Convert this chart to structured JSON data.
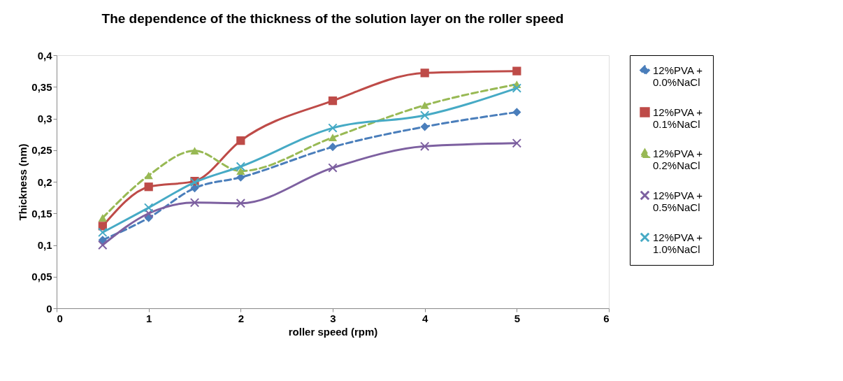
{
  "chart_data": {
    "type": "line",
    "title": "The dependence of the thickness of the  solution layer on the roller speed",
    "xlabel": "roller speed (rpm)",
    "ylabel": "Thickness (nm)",
    "x": [
      0.5,
      1,
      1.5,
      2,
      3,
      4,
      5
    ],
    "series": [
      {
        "name": "12%PVA + 0.0%NaCl",
        "color": "#4a7ebb",
        "marker": "diamond",
        "line_style": "dashed",
        "values": [
          0.108,
          0.143,
          0.19,
          0.207,
          0.255,
          0.287,
          0.31
        ]
      },
      {
        "name": "12%PVA + 0.1%NaCl",
        "color": "#be4b48",
        "marker": "square",
        "line_style": "solid",
        "values": [
          0.13,
          0.192,
          0.201,
          0.265,
          0.328,
          0.372,
          0.375
        ]
      },
      {
        "name": "12%PVA + 0.2%NaCl",
        "color": "#98b954",
        "marker": "triangle",
        "line_style": "dashed",
        "values": [
          0.143,
          0.21,
          0.249,
          0.217,
          0.27,
          0.321,
          0.354
        ]
      },
      {
        "name": "12%PVA + 0.5%NaCl",
        "color": "#7d60a0",
        "marker": "cross",
        "line_style": "solid",
        "values": [
          0.1,
          0.15,
          0.167,
          0.166,
          0.222,
          0.256,
          0.261
        ]
      },
      {
        "name": "12%PVA + 1.0%NaCl",
        "color": "#46aac5",
        "marker": "cross",
        "line_style": "solid",
        "values": [
          0.12,
          0.159,
          0.199,
          0.224,
          0.285,
          0.305,
          0.348
        ]
      }
    ],
    "xlim": [
      0,
      6
    ],
    "xticks": [
      0,
      1,
      2,
      3,
      4,
      5,
      6
    ],
    "ylim": [
      0,
      0.4
    ],
    "yticks": [
      {
        "value": 0,
        "label": "0"
      },
      {
        "value": 0.05,
        "label": "0,05"
      },
      {
        "value": 0.1,
        "label": "0,1"
      },
      {
        "value": 0.15,
        "label": "0,15"
      },
      {
        "value": 0.2,
        "label": "0,2"
      },
      {
        "value": 0.25,
        "label": "0,25"
      },
      {
        "value": 0.3,
        "label": "0,3"
      },
      {
        "value": 0.35,
        "label": "0,35"
      },
      {
        "value": 0.4,
        "label": "0,4"
      }
    ],
    "grid": false,
    "legend": "right"
  }
}
